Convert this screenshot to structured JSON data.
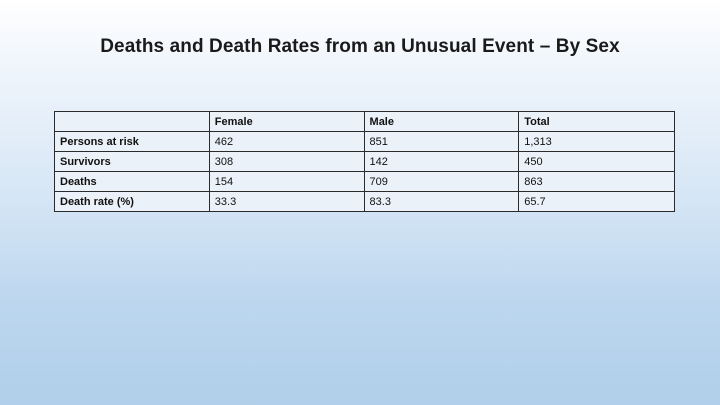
{
  "slide": {
    "title": "Deaths and Death Rates from an Unusual Event – By Sex"
  },
  "table": {
    "headers": [
      "",
      "Female",
      "Male",
      "Total"
    ],
    "rows": [
      {
        "label": "Persons at risk",
        "values": [
          "462",
          "851",
          "1,313"
        ]
      },
      {
        "label": "Survivors",
        "values": [
          "308",
          "142",
          "450"
        ]
      },
      {
        "label": "Deaths",
        "values": [
          "154",
          "709",
          "863"
        ]
      },
      {
        "label": "Death rate (%)",
        "values": [
          "33.3",
          "83.3",
          "65.7"
        ]
      }
    ]
  }
}
